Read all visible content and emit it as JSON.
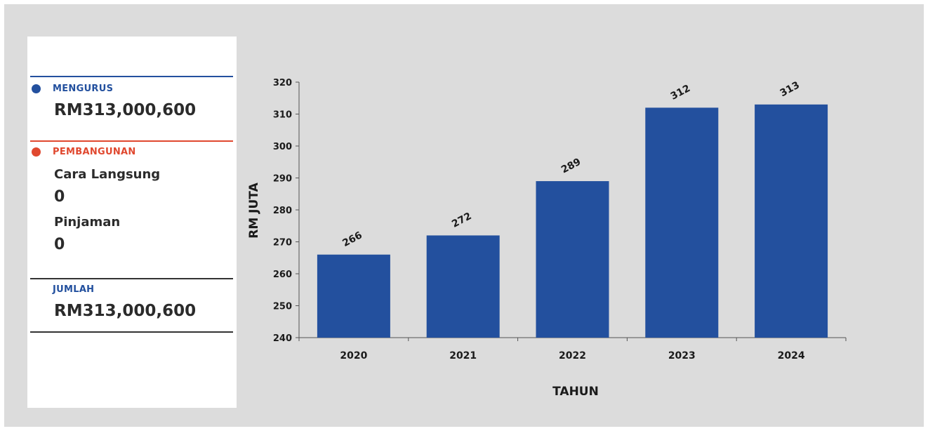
{
  "summary": {
    "mengurus": {
      "label": "MENGURUS",
      "amount": "RM313,000,600"
    },
    "pembangunan": {
      "label": "PEMBANGUNAN",
      "cara_langsung_label": "Cara Langsung",
      "cara_langsung_value": "0",
      "pinjaman_label": "Pinjaman",
      "pinjaman_value": "0"
    },
    "jumlah": {
      "label": "JUMLAH",
      "amount": "RM313,000,600"
    }
  },
  "colors": {
    "mengurus": "#23509e",
    "pembangunan": "#e0482f",
    "bar": "#23509e"
  },
  "chart_data": {
    "type": "bar",
    "categories": [
      "2020",
      "2021",
      "2022",
      "2023",
      "2024"
    ],
    "values": [
      266,
      272,
      289,
      312,
      313
    ],
    "data_labels": [
      "266",
      "272",
      "289",
      "312",
      "313"
    ],
    "xlabel": "TAHUN",
    "ylabel": "RM JUTA",
    "ylim": [
      240,
      320
    ],
    "yticks": [
      "240",
      "250",
      "260",
      "270",
      "280",
      "290",
      "300",
      "310",
      "320"
    ],
    "grid": false,
    "legend": "none"
  }
}
